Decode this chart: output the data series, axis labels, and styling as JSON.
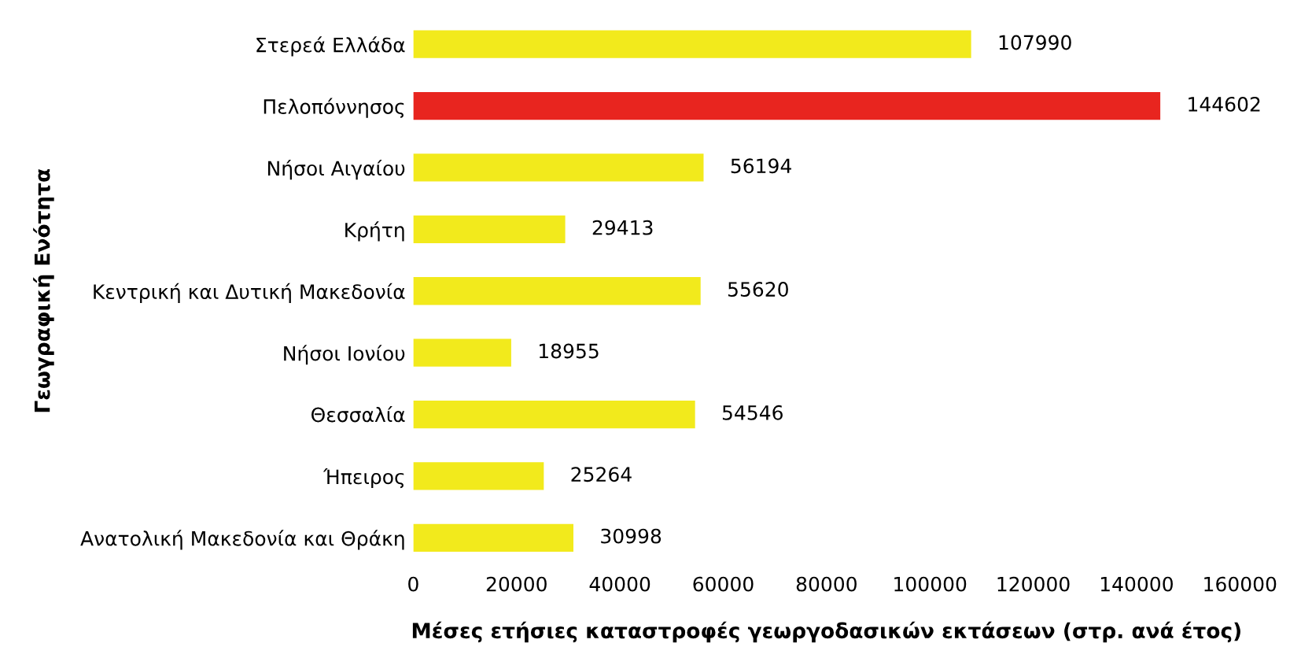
{
  "chart_data": {
    "type": "bar",
    "orientation": "horizontal",
    "categories": [
      "Στερεά Ελλάδα",
      "Πελοπόννησος",
      "Νήσοι Αιγαίου",
      "Κρήτη",
      "Κεντρική και Δυτική Μακεδονία",
      "Νήσοι Ιονίου",
      "Θεσσαλία",
      "Ήπειρος",
      "Ανατολική Μακεδονία και Θράκη"
    ],
    "values": [
      107990,
      144602,
      56194,
      29413,
      55620,
      18955,
      54546,
      25264,
      30998
    ],
    "colors": [
      "#f2ea1c",
      "#e8251f",
      "#f2ea1c",
      "#f2ea1c",
      "#f2ea1c",
      "#f2ea1c",
      "#f2ea1c",
      "#f2ea1c",
      "#f2ea1c"
    ],
    "xlim": [
      0,
      160000
    ],
    "xticks": [
      0,
      20000,
      40000,
      60000,
      80000,
      100000,
      120000,
      140000,
      160000
    ],
    "xlabel": "Μέσες ετήσιες καταστροφές γεωργοδασικών εκτάσεων (στρ. ανά έτος)",
    "ylabel": "Γεωγραφική Ενότητα",
    "data_labels": true,
    "grid": false,
    "legend": false
  }
}
